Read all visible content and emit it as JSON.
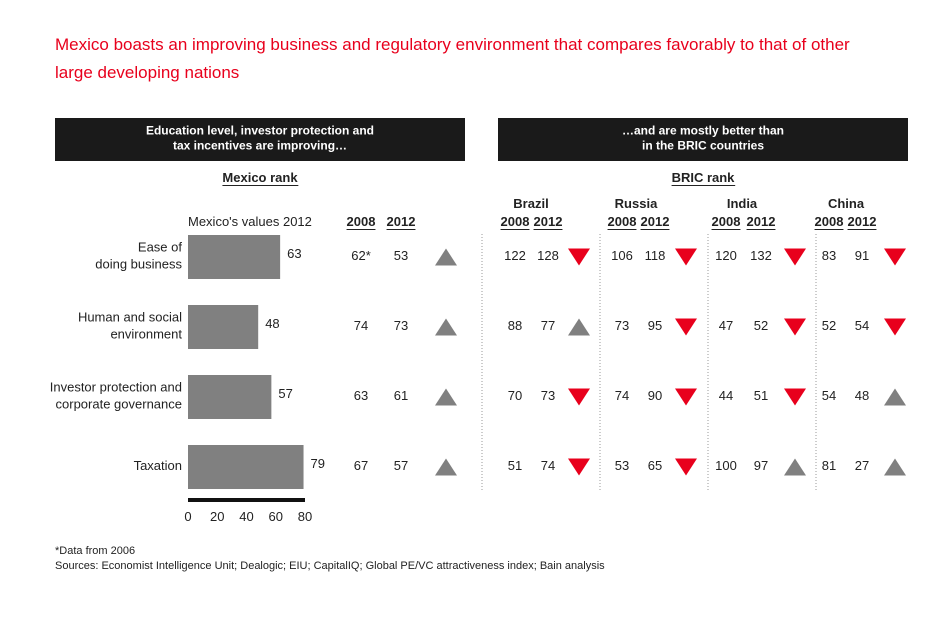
{
  "title": "Mexico boasts an improving business and regulatory environment that compares favorably to that of other\nlarge developing nations",
  "left_header": "Education level, investor protection and\ntax incentives are improving…",
  "right_header": "…and are mostly better than\nin the BRIC countries",
  "chart_data": {
    "type": "bar",
    "orientation": "horizontal",
    "title": "Mexico's values 2012",
    "categories": [
      "Ease of\ndoing business",
      "Human and social\nenvironment",
      "Investor protection and\ncorporate governance",
      "Taxation"
    ],
    "values": [
      63,
      48,
      57,
      79
    ],
    "color": "#808080",
    "xlim": [
      0,
      80
    ],
    "xticks": [
      0,
      20,
      40,
      60,
      80
    ],
    "grid": false
  },
  "mexico_rank": {
    "title": "Mexico rank",
    "columns": [
      "2008",
      "2012"
    ],
    "rows": [
      [
        "62*",
        53
      ],
      [
        74,
        73
      ],
      [
        63,
        61
      ],
      [
        67,
        57
      ]
    ],
    "trend": [
      "up",
      "up",
      "up",
      "up"
    ]
  },
  "bric_rank": {
    "title": "BRIC rank",
    "countries": [
      {
        "name": "Brazil",
        "columns": [
          "2008",
          "2012"
        ],
        "rows": [
          [
            122,
            128
          ],
          [
            88,
            77
          ],
          [
            70,
            73
          ],
          [
            51,
            74
          ]
        ],
        "trend": [
          "down",
          "up",
          "down",
          "down"
        ]
      },
      {
        "name": "Russia",
        "columns": [
          "2008",
          "2012"
        ],
        "rows": [
          [
            106,
            118
          ],
          [
            73,
            95
          ],
          [
            74,
            90
          ],
          [
            53,
            65
          ]
        ],
        "trend": [
          "down",
          "down",
          "down",
          "down"
        ]
      },
      {
        "name": "India",
        "columns": [
          "2008",
          "2012"
        ],
        "rows": [
          [
            120,
            132
          ],
          [
            47,
            52
          ],
          [
            44,
            51
          ],
          [
            100,
            97
          ]
        ],
        "trend": [
          "down",
          "down",
          "down",
          "up"
        ]
      },
      {
        "name": "China",
        "columns": [
          "2008",
          "2012"
        ],
        "rows": [
          [
            83,
            91
          ],
          [
            52,
            54
          ],
          [
            54,
            48
          ],
          [
            81,
            27
          ]
        ],
        "trend": [
          "down",
          "down",
          "up",
          "up"
        ]
      }
    ]
  },
  "trend_colors": {
    "up": "#808080",
    "down": "#e8001c"
  },
  "footnotes": [
    "*Data from 2006",
    "Sources: Economist Intelligence Unit; Dealogic; EIU; CapitalIQ; Global PE/VC attractiveness index; Bain analysis"
  ]
}
